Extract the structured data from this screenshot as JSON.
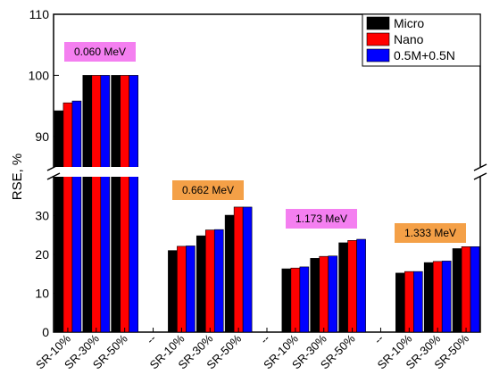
{
  "chart_data": {
    "type": "bar",
    "title": "",
    "xlabel": "",
    "ylabel": "RSE, %",
    "ylim_lower": [
      0,
      40
    ],
    "ylim_upper": [
      85,
      110
    ],
    "y_break": [
      40,
      85
    ],
    "yticks_lower": [
      "0",
      "10",
      "20",
      "30"
    ],
    "yticks_upper": [
      "90",
      "100",
      "110"
    ],
    "legend_position": "top-right",
    "categories": [
      "SR-10%",
      "SR-30%",
      "SR-50%",
      "--",
      "SR-10%",
      "SR-30%",
      "SR-50%",
      "--",
      "SR-10%",
      "SR-30%",
      "SR-50%",
      "--",
      "SR-10%",
      "SR-30%",
      "SR-50%"
    ],
    "series": [
      {
        "name": "Micro",
        "color": "#000000",
        "values": [
          94.2,
          100,
          100,
          null,
          21,
          24.8,
          30.1,
          null,
          16.3,
          19.0,
          23.0,
          null,
          15.2,
          17.9,
          21.5
        ]
      },
      {
        "name": "Nano",
        "color": "#ff0000",
        "values": [
          95.5,
          100,
          100,
          null,
          22.1,
          26.3,
          32.2,
          null,
          16.5,
          19.5,
          23.6,
          null,
          15.6,
          18.2,
          22.0
        ]
      },
      {
        "name": "0.5M+0.5N",
        "color": "#0000ff",
        "values": [
          95.8,
          100,
          100,
          null,
          22.2,
          26.4,
          32.2,
          null,
          16.8,
          19.6,
          23.9,
          null,
          15.6,
          18.3,
          22.0
        ]
      }
    ],
    "annotations": [
      {
        "text": "0.060 MeV",
        "color": "#f47ff0"
      },
      {
        "text": "0.662 MeV",
        "color": "#f4a047"
      },
      {
        "text": "1.173 MeV",
        "color": "#f47ff0"
      },
      {
        "text": "1.333 MeV",
        "color": "#f4a047"
      }
    ]
  }
}
